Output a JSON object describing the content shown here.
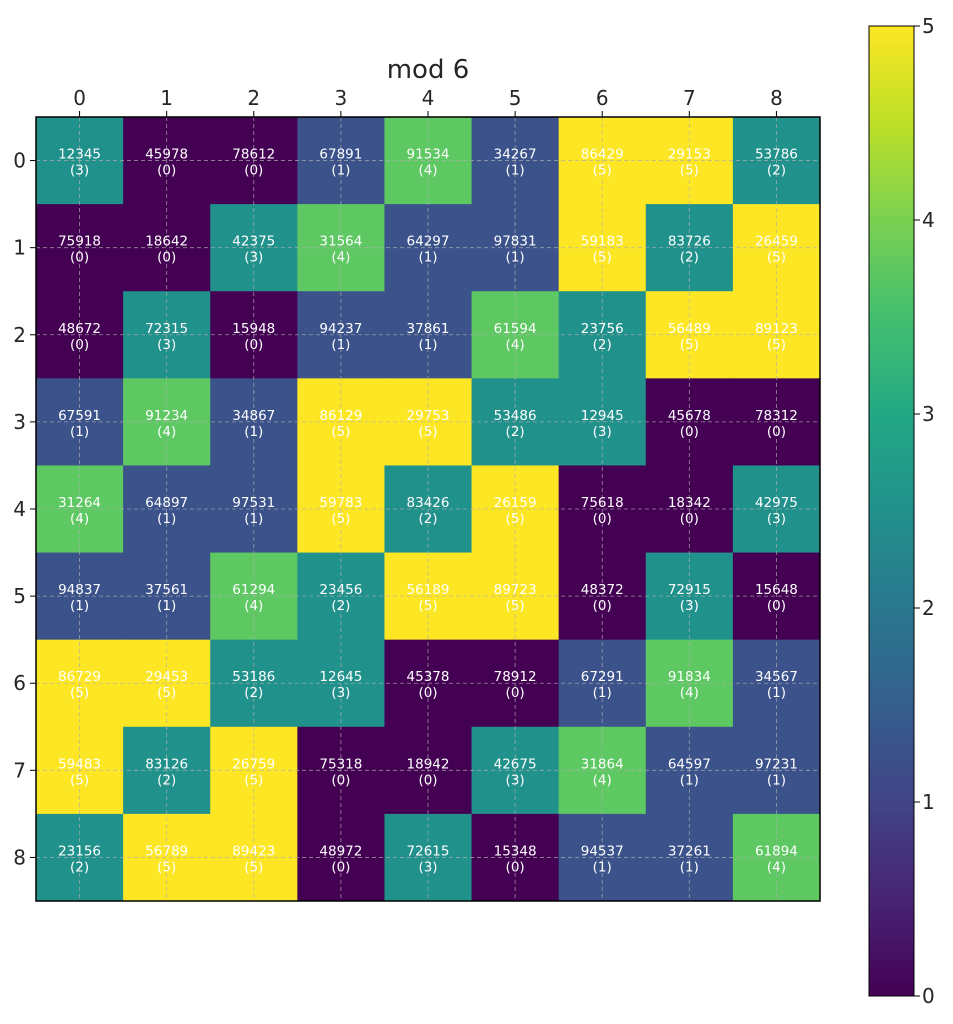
{
  "chart_data": {
    "type": "heatmap",
    "title": "mod 6",
    "x_tick_labels": [
      "0",
      "1",
      "2",
      "3",
      "4",
      "5",
      "6",
      "7",
      "8"
    ],
    "y_tick_labels": [
      "0",
      "1",
      "2",
      "3",
      "4",
      "5",
      "6",
      "7",
      "8"
    ],
    "numbers": [
      [
        12345,
        45978,
        78612,
        67891,
        91534,
        34267,
        86429,
        29153,
        53786
      ],
      [
        75918,
        18642,
        42375,
        31564,
        64297,
        97831,
        59183,
        83726,
        26459
      ],
      [
        48672,
        72315,
        15948,
        94237,
        37861,
        61594,
        23756,
        56489,
        89123
      ],
      [
        67591,
        91234,
        34867,
        86129,
        29753,
        53486,
        12945,
        45678,
        78312
      ],
      [
        31264,
        64897,
        97531,
        59783,
        83426,
        26159,
        75618,
        18342,
        42975
      ],
      [
        94837,
        37561,
        61294,
        23456,
        56189,
        89723,
        48372,
        72915,
        15648
      ],
      [
        86729,
        29453,
        53186,
        12645,
        45378,
        78912,
        67291,
        91834,
        34567
      ],
      [
        59483,
        83126,
        26759,
        75318,
        18942,
        42675,
        31864,
        64597,
        97231
      ],
      [
        23156,
        56789,
        89423,
        48972,
        72615,
        15348,
        94537,
        37261,
        61894
      ]
    ],
    "values": [
      [
        3,
        0,
        0,
        1,
        4,
        1,
        5,
        5,
        2
      ],
      [
        0,
        0,
        3,
        4,
        1,
        1,
        5,
        2,
        5
      ],
      [
        0,
        3,
        0,
        1,
        1,
        4,
        2,
        5,
        5
      ],
      [
        1,
        4,
        1,
        5,
        5,
        2,
        3,
        0,
        0
      ],
      [
        4,
        1,
        1,
        5,
        2,
        5,
        0,
        0,
        3
      ],
      [
        1,
        1,
        4,
        2,
        5,
        5,
        0,
        3,
        0
      ],
      [
        5,
        5,
        2,
        3,
        0,
        0,
        1,
        4,
        1
      ],
      [
        5,
        2,
        5,
        0,
        0,
        3,
        4,
        1,
        1
      ],
      [
        2,
        5,
        5,
        0,
        3,
        0,
        1,
        1,
        4
      ]
    ],
    "colorbar": {
      "min": 0,
      "max": 5,
      "ticks": [
        0,
        1,
        2,
        3,
        4,
        5
      ],
      "colors": [
        "#440154",
        "#3b528b",
        "#21918c",
        "#5ec962",
        "#fde725"
      ]
    },
    "grid": true
  }
}
